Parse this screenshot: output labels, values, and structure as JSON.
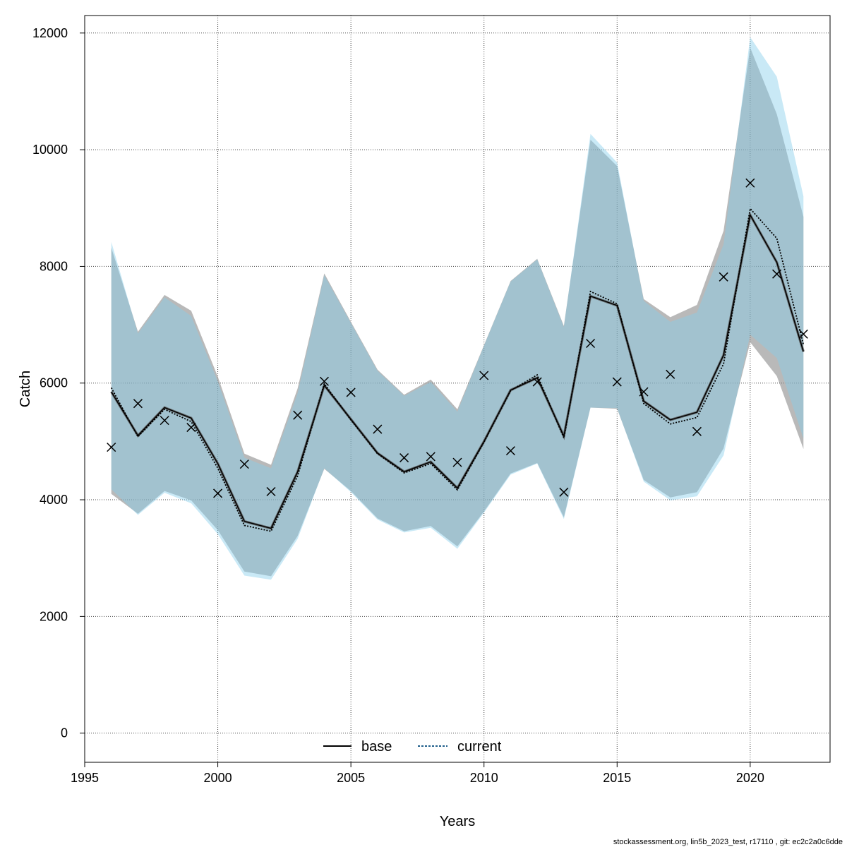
{
  "chart_data": {
    "type": "line",
    "xlabel": "Years",
    "ylabel": "Catch",
    "xlim": [
      1995,
      2023
    ],
    "ylim": [
      -500,
      12300
    ],
    "x_ticks": [
      1995,
      2000,
      2005,
      2010,
      2015,
      2020
    ],
    "y_ticks": [
      0,
      2000,
      4000,
      6000,
      8000,
      10000,
      12000
    ],
    "grid": true,
    "legend_position": "bottom-center",
    "years": [
      1996,
      1997,
      1998,
      1999,
      2000,
      2001,
      2002,
      2003,
      2004,
      2005,
      2006,
      2007,
      2008,
      2009,
      2010,
      2011,
      2012,
      2013,
      2014,
      2015,
      2016,
      2017,
      2018,
      2019,
      2020,
      2021,
      2022
    ],
    "observed": {
      "marker": "x",
      "values": [
        4900,
        5650,
        5360,
        5240,
        4110,
        4610,
        4140,
        5450,
        6030,
        5840,
        5210,
        4720,
        4740,
        4640,
        6130,
        4840,
        6020,
        4130,
        6680,
        6020,
        5850,
        6150,
        5170,
        7820,
        9430,
        7870,
        6840
      ]
    },
    "series": [
      {
        "name": "base",
        "line_style": "solid",
        "color": "#000000",
        "band_color": "#808080",
        "values": [
          5850,
          5100,
          5580,
          5400,
          4620,
          3630,
          3510,
          4480,
          5960,
          5380,
          4800,
          4480,
          4650,
          4200,
          5000,
          5880,
          6090,
          5090,
          7490,
          7330,
          5690,
          5370,
          5500,
          6480,
          8880,
          8070,
          6540
        ],
        "lower": [
          4100,
          3760,
          4150,
          3990,
          3480,
          2770,
          2690,
          3380,
          4530,
          4150,
          3680,
          3460,
          3550,
          3200,
          3800,
          4450,
          4630,
          3700,
          5580,
          5560,
          4340,
          4040,
          4130,
          4880,
          6700,
          6120,
          4870
        ],
        "upper": [
          8320,
          6880,
          7510,
          7240,
          6110,
          4790,
          4600,
          5910,
          7880,
          7050,
          6230,
          5800,
          6060,
          5550,
          6650,
          7750,
          8130,
          6980,
          10170,
          9720,
          7440,
          7130,
          7340,
          8610,
          11750,
          10610,
          8850
        ]
      },
      {
        "name": "current",
        "line_style": "dotted",
        "color": "#000000",
        "band_color": "#87ceeb",
        "values": [
          5920,
          5080,
          5550,
          5340,
          4540,
          3560,
          3460,
          4410,
          5990,
          5370,
          4790,
          4460,
          4620,
          4170,
          4990,
          5870,
          6140,
          5060,
          7570,
          7360,
          5650,
          5300,
          5410,
          6330,
          8990,
          8480,
          6660
        ],
        "lower": [
          4180,
          3740,
          4120,
          3940,
          3410,
          2700,
          2630,
          3330,
          4540,
          4130,
          3660,
          3440,
          3520,
          3160,
          3780,
          4430,
          4620,
          3670,
          5580,
          5570,
          4310,
          3990,
          4060,
          4760,
          6830,
          6430,
          5050
        ],
        "upper": [
          8420,
          6850,
          7470,
          7150,
          6030,
          4720,
          4540,
          5830,
          7850,
          7030,
          6210,
          5780,
          6020,
          5510,
          6640,
          7740,
          8120,
          6960,
          10270,
          9780,
          7410,
          7050,
          7210,
          8380,
          11930,
          11250,
          9200
        ]
      }
    ]
  },
  "footer": "stockassessment.org, lin5b_2023_test, r17110 , git: ec2c2a0c6dde"
}
